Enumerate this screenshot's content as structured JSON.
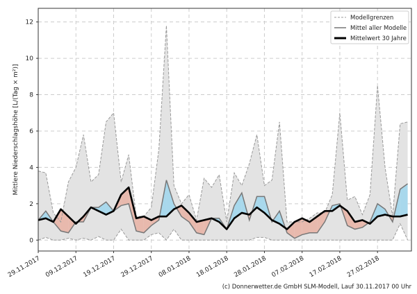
{
  "chart_data": {
    "type": "area",
    "ylabel": "Mittlere Niederschlagshöhe [L/(Tag × m²)]",
    "xlabel": "",
    "xlim": [
      "29.11.2017",
      "08.03.2018"
    ],
    "ylim": [
      -0.6,
      12.75
    ],
    "grid": true,
    "legend_placement": "top-right",
    "xticks": [
      "29.11.2017",
      "09.12.2017",
      "19.12.2017",
      "29.12.2017",
      "08.01.2018",
      "18.01.2018",
      "28.01.2018",
      "07.02.2018",
      "17.02.2018",
      "27.02.2018"
    ],
    "yticks": [
      0,
      2,
      4,
      6,
      8,
      10,
      12
    ],
    "x": [
      "29.11.2017",
      "01.12.2017",
      "03.12.2017",
      "05.12.2017",
      "07.12.2017",
      "09.12.2017",
      "11.12.2017",
      "13.12.2017",
      "15.12.2017",
      "17.12.2017",
      "19.12.2017",
      "21.12.2017",
      "23.12.2017",
      "25.12.2017",
      "27.12.2017",
      "29.12.2017",
      "31.12.2017",
      "02.01.2018",
      "04.01.2018",
      "06.01.2018",
      "08.01.2018",
      "10.01.2018",
      "12.01.2018",
      "14.01.2018",
      "16.01.2018",
      "18.01.2018",
      "20.01.2018",
      "22.01.2018",
      "24.01.2018",
      "26.01.2018",
      "28.01.2018",
      "30.01.2018",
      "01.02.2018",
      "03.02.2018",
      "05.02.2018",
      "07.02.2018",
      "09.02.2018",
      "11.02.2018",
      "13.02.2018",
      "15.02.2018",
      "17.02.2018",
      "19.02.2018",
      "21.02.2018",
      "23.02.2018",
      "25.02.2018",
      "27.02.2018",
      "01.03.2018",
      "03.03.2018",
      "05.03.2018",
      "07.03.2018"
    ],
    "series": [
      {
        "name": "Modellgrenzen",
        "role": "upper",
        "values": [
          3.8,
          3.7,
          1.5,
          1.0,
          3.2,
          4.0,
          5.8,
          3.2,
          3.6,
          6.5,
          7.0,
          3.2,
          4.7,
          1.3,
          1.3,
          1.8,
          5.0,
          11.8,
          3.0,
          2.0,
          2.5,
          1.1,
          3.4,
          2.9,
          3.6,
          1.0,
          3.7,
          3.0,
          4.2,
          5.8,
          3.0,
          3.3,
          6.5,
          1.0,
          1.0,
          1.0,
          1.2,
          1.5,
          1.5,
          2.5,
          7.0,
          2.2,
          2.4,
          1.4,
          2.5,
          8.5,
          4.0,
          1.3,
          6.4,
          6.5
        ]
      },
      {
        "name": "Modellgrenzen",
        "role": "lower",
        "values": [
          0,
          0.15,
          0,
          0,
          0.1,
          0,
          0.1,
          0,
          0.2,
          0,
          0,
          0.6,
          0,
          0,
          0,
          0.3,
          0.4,
          0,
          0.6,
          0,
          0,
          0,
          0,
          0,
          0,
          0,
          0,
          0,
          0,
          0.15,
          0.15,
          0,
          0,
          0,
          0,
          0,
          0,
          0,
          0,
          0,
          0,
          0,
          0,
          0,
          0,
          0,
          0,
          0,
          0.9,
          0
        ]
      },
      {
        "name": "Mittel aller Modelle",
        "values": [
          1.1,
          1.6,
          1.0,
          0.5,
          0.4,
          1.0,
          1.0,
          1.8,
          1.8,
          2.1,
          1.6,
          1.9,
          2.0,
          0.5,
          0.4,
          0.8,
          1.1,
          3.3,
          2.0,
          1.3,
          1.0,
          0.4,
          0.3,
          1.2,
          1.2,
          0.6,
          1.9,
          2.6,
          1.1,
          2.4,
          2.4,
          1.0,
          1.6,
          0.4,
          0.1,
          0.3,
          0.4,
          0.4,
          1.0,
          1.9,
          2.0,
          0.8,
          0.6,
          0.7,
          1.0,
          2.0,
          1.7,
          1.0,
          2.8,
          3.1
        ]
      },
      {
        "name": "Mittelwert 30 Jahre",
        "values": [
          1.1,
          1.2,
          1.0,
          1.7,
          1.3,
          0.9,
          1.3,
          1.8,
          1.6,
          1.4,
          1.6,
          2.5,
          2.9,
          1.2,
          1.3,
          1.1,
          1.3,
          1.3,
          1.7,
          1.9,
          1.5,
          1.0,
          1.1,
          1.2,
          1.0,
          0.6,
          1.2,
          1.5,
          1.4,
          1.8,
          1.5,
          1.1,
          0.9,
          0.6,
          1.0,
          1.2,
          1.0,
          1.3,
          1.6,
          1.6,
          1.9,
          1.6,
          1.0,
          1.1,
          0.9,
          1.3,
          1.4,
          1.3,
          1.3,
          1.4
        ]
      }
    ],
    "legend": [
      "Modellgrenzen",
      "Mittel aller Modelle",
      "Mittelwert 30 Jahre"
    ],
    "colors": {
      "range_fill": "#e3e3e3",
      "range_line": "#999999",
      "above_fill": "#a8d8ec",
      "below_fill": "#e8b9ad",
      "model_mean": "#777777",
      "climate_mean": "#000000"
    }
  },
  "footer": "(c) Donnerwetter.de GmbH SLM-Modell, Lauf 30.11.2017 00 Uhr"
}
